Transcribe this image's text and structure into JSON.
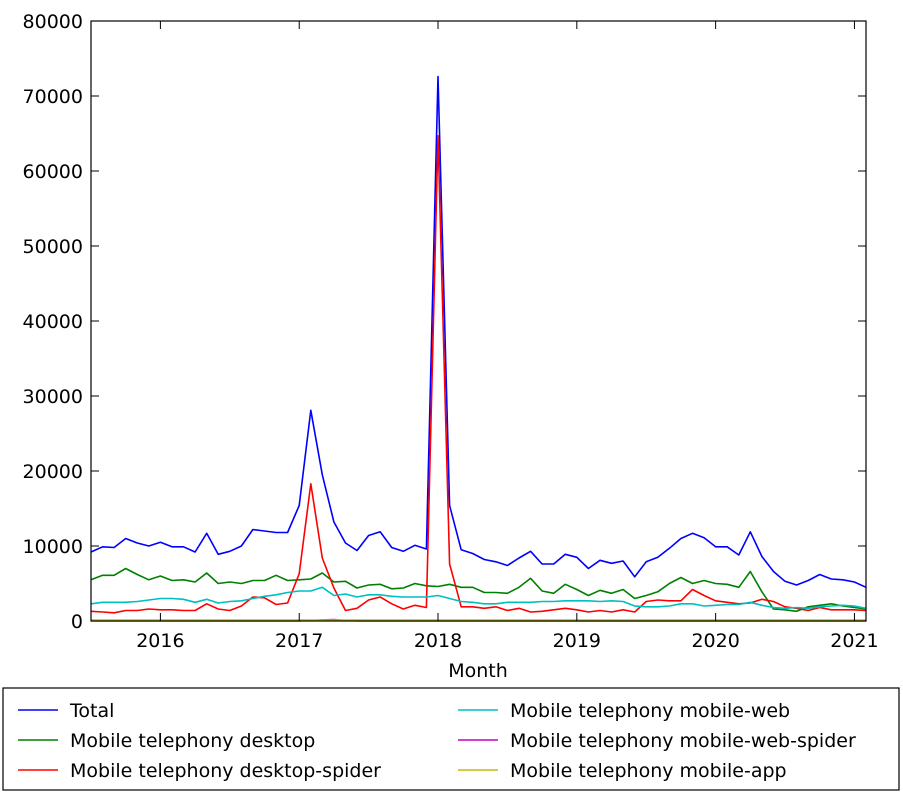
{
  "chart_data": {
    "type": "line",
    "title": "",
    "xlabel": "Month",
    "ylabel": "",
    "xlim": [
      2015.5,
      2021.0833
    ],
    "ylim": [
      0,
      80000
    ],
    "grid": false,
    "legend_position": "bottom",
    "x_ticks": [
      {
        "value": 2016,
        "label": "2016"
      },
      {
        "value": 2017,
        "label": "2017"
      },
      {
        "value": 2018,
        "label": "2018"
      },
      {
        "value": 2019,
        "label": "2019"
      },
      {
        "value": 2020,
        "label": "2020"
      },
      {
        "value": 2021,
        "label": "2021"
      }
    ],
    "y_ticks": [
      {
        "value": 0,
        "label": "0"
      },
      {
        "value": 10000,
        "label": "10000"
      },
      {
        "value": 20000,
        "label": "20000"
      },
      {
        "value": 30000,
        "label": "30000"
      },
      {
        "value": 40000,
        "label": "40000"
      },
      {
        "value": 50000,
        "label": "50000"
      },
      {
        "value": 60000,
        "label": "60000"
      },
      {
        "value": 70000,
        "label": "70000"
      },
      {
        "value": 80000,
        "label": "80000"
      }
    ],
    "x_start": 2015.5,
    "x_step": 0.08333333,
    "series": [
      {
        "name": "Total",
        "color": "#0000ff",
        "values": [
          9200,
          9900,
          9800,
          11000,
          10400,
          10000,
          10500,
          9900,
          9900,
          9200,
          11700,
          8900,
          9300,
          10000,
          12200,
          12000,
          11800,
          11800,
          15400,
          28100,
          19500,
          13200,
          10400,
          9400,
          11400,
          11900,
          9800,
          9300,
          10100,
          9600,
          72600,
          15400,
          9500,
          9000,
          8200,
          7900,
          7400,
          8400,
          9300,
          7600,
          7600,
          8900,
          8500,
          7000,
          8100,
          7700,
          8000,
          5900,
          7900,
          8500,
          9700,
          11000,
          11700,
          11100,
          9900,
          9900,
          8800,
          11900,
          8600,
          6600,
          5300,
          4800,
          5400,
          6200,
          5600,
          5500,
          5200,
          4500
        ]
      },
      {
        "name": "Mobile telephony desktop",
        "color": "#008000",
        "values": [
          5500,
          6100,
          6100,
          7000,
          6200,
          5500,
          6000,
          5400,
          5500,
          5200,
          6400,
          5000,
          5200,
          5000,
          5400,
          5400,
          6100,
          5400,
          5500,
          5600,
          6400,
          5200,
          5300,
          4400,
          4800,
          4900,
          4300,
          4400,
          5000,
          4700,
          4600,
          4900,
          4500,
          4500,
          3800,
          3800,
          3700,
          4500,
          5700,
          4000,
          3700,
          4900,
          4200,
          3400,
          4100,
          3700,
          4200,
          3000,
          3400,
          3900,
          5000,
          5800,
          5000,
          5400,
          5000,
          4900,
          4500,
          6600,
          3900,
          1600,
          1500,
          1300,
          1900,
          2100,
          2300,
          2000,
          1800,
          1600
        ]
      },
      {
        "name": "Mobile telephony desktop-spider",
        "color": "#ff0000",
        "values": [
          1300,
          1200,
          1100,
          1400,
          1400,
          1600,
          1500,
          1500,
          1400,
          1400,
          2300,
          1600,
          1400,
          2000,
          3200,
          3100,
          2200,
          2400,
          6300,
          18300,
          8400,
          4400,
          1400,
          1700,
          2800,
          3200,
          2300,
          1600,
          2100,
          1800,
          64700,
          7600,
          1900,
          1900,
          1700,
          1900,
          1400,
          1700,
          1200,
          1300,
          1500,
          1700,
          1500,
          1200,
          1400,
          1200,
          1500,
          1200,
          2600,
          2800,
          2700,
          2700,
          4200,
          3400,
          2700,
          2500,
          2300,
          2400,
          2900,
          2600,
          1900,
          1700,
          1400,
          1800,
          1500,
          1500,
          1500,
          1400
        ]
      },
      {
        "name": "Mobile telephony mobile-web",
        "color": "#00bfbf",
        "values": [
          2300,
          2500,
          2500,
          2500,
          2600,
          2800,
          3000,
          3000,
          2900,
          2500,
          2900,
          2400,
          2600,
          2700,
          3000,
          3300,
          3500,
          3800,
          4000,
          4000,
          4500,
          3400,
          3600,
          3200,
          3500,
          3500,
          3300,
          3200,
          3200,
          3200,
          3400,
          3000,
          2600,
          2500,
          2300,
          2300,
          2500,
          2500,
          2500,
          2600,
          2600,
          2700,
          2700,
          2700,
          2600,
          2700,
          2600,
          2000,
          1900,
          1900,
          2000,
          2300,
          2300,
          2000,
          2100,
          2200,
          2200,
          2500,
          2100,
          1800,
          1700,
          1800,
          1700,
          1900,
          2000,
          2100,
          2000,
          1700
        ]
      },
      {
        "name": "Mobile telephony mobile-web-spider",
        "color": "#bf00bf",
        "values": [
          30,
          30,
          30,
          30,
          30,
          30,
          30,
          30,
          30,
          30,
          30,
          30,
          30,
          30,
          30,
          30,
          30,
          30,
          30,
          60,
          150,
          200,
          60,
          30,
          30,
          30,
          30,
          30,
          30,
          30,
          30,
          30,
          30,
          30,
          30,
          30,
          30,
          30,
          30,
          30,
          30,
          30,
          30,
          30,
          30,
          30,
          30,
          30,
          30,
          30,
          30,
          30,
          30,
          30,
          30,
          30,
          30,
          30,
          30,
          30,
          30,
          30,
          30,
          30,
          30,
          30,
          30,
          30
        ]
      },
      {
        "name": "Mobile telephony mobile-app",
        "color": "#bfbf00",
        "values": [
          120,
          120,
          120,
          120,
          120,
          120,
          120,
          120,
          120,
          120,
          120,
          120,
          120,
          120,
          120,
          120,
          120,
          120,
          120,
          120,
          120,
          120,
          120,
          120,
          120,
          120,
          120,
          120,
          120,
          120,
          120,
          120,
          120,
          120,
          120,
          120,
          120,
          120,
          120,
          120,
          120,
          120,
          120,
          120,
          120,
          120,
          120,
          120,
          120,
          120,
          120,
          120,
          120,
          120,
          120,
          120,
          120,
          120,
          120,
          120,
          120,
          120,
          120,
          120,
          120,
          120,
          120,
          120
        ]
      }
    ]
  }
}
